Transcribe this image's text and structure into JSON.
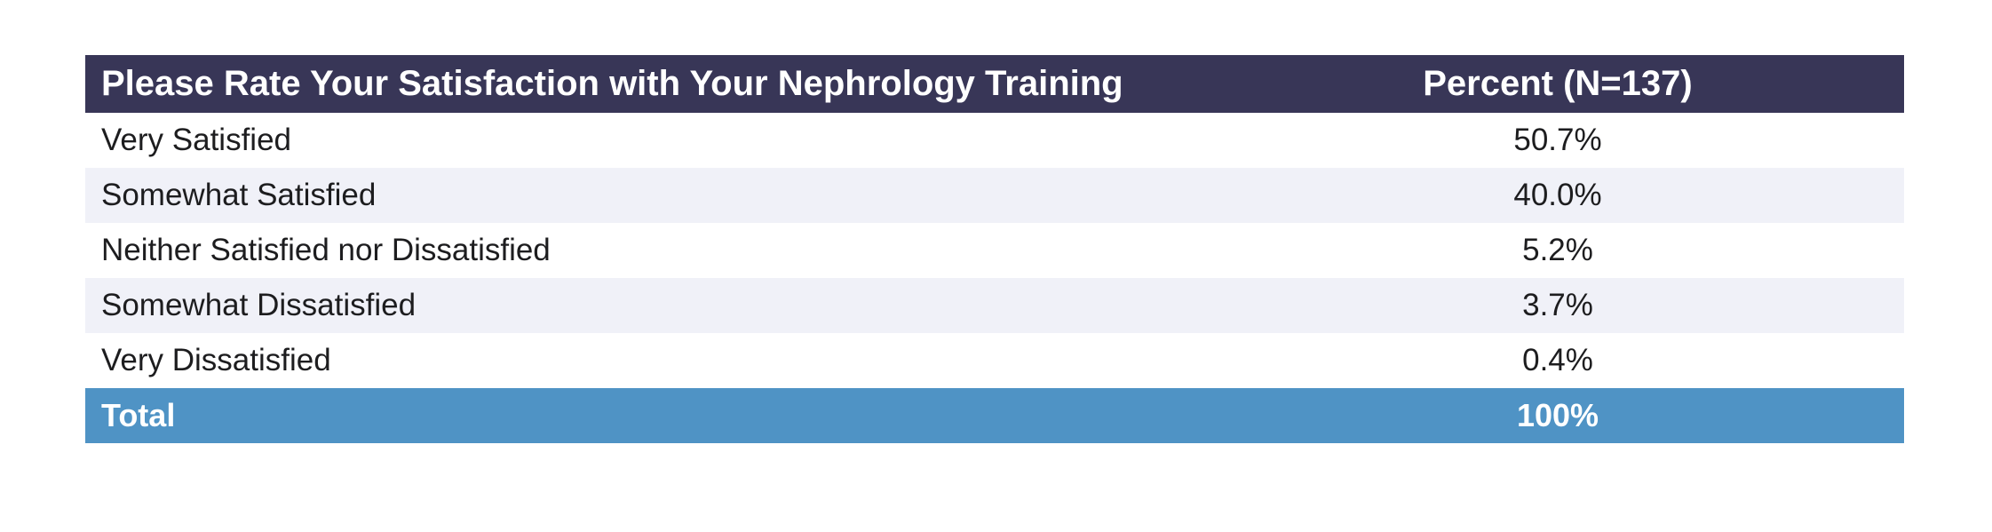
{
  "chart_data": {
    "type": "table",
    "columns": [
      "Please Rate Your Satisfaction with Your Nephrology Training",
      "Percent (N=137)"
    ],
    "rows": [
      {
        "label": "Very Satisfied",
        "value": "50.7%"
      },
      {
        "label": "Somewhat Satisfied",
        "value": "40.0%"
      },
      {
        "label": "Neither Satisfied nor Dissatisfied",
        "value": "5.2%"
      },
      {
        "label": "Somewhat Dissatisfied",
        "value": "3.7%"
      },
      {
        "label": "Very Dissatisfied",
        "value": "0.4%"
      }
    ],
    "total": {
      "label": "Total",
      "value": "100%"
    }
  },
  "colors": {
    "header_background": "#383657",
    "total_background": "#4f93c5",
    "stripe_background": "#f0f1f8"
  }
}
